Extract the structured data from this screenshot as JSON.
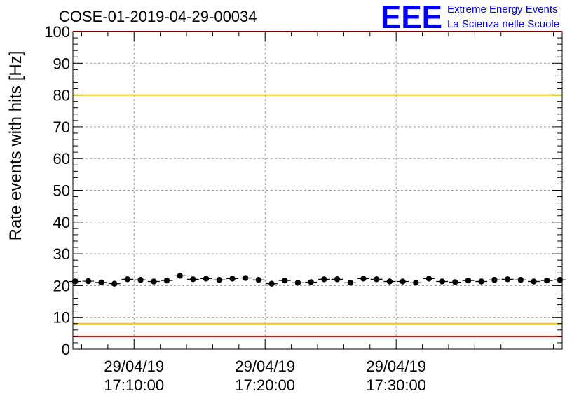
{
  "logo": {
    "mark": "EEE",
    "line1": "Extreme Energy Events",
    "line2": "La Scienza nelle Scuole",
    "color": "#0000ee"
  },
  "chart_data": {
    "type": "scatter",
    "title": "COSE-01-2019-04-29-00034",
    "xlabel": "",
    "ylabel": "Rate events with hits [Hz]",
    "ylim": [
      0,
      100
    ],
    "yticks": [
      0,
      10,
      20,
      30,
      40,
      50,
      60,
      70,
      80,
      90,
      100
    ],
    "xlim": [
      "2019-04-29 17:05:20",
      "2019-04-29 17:42:40"
    ],
    "xticks": [
      {
        "date": "29/04/19",
        "time": "17:10:00"
      },
      {
        "date": "29/04/19",
        "time": "17:20:00"
      },
      {
        "date": "29/04/19",
        "time": "17:30:00"
      }
    ],
    "grid": true,
    "colors": {
      "points": "#000000",
      "limit_red": "#ff0000",
      "limit_yellow": "#f0c800"
    },
    "reference_lines": [
      {
        "y": 100,
        "color": "#ff0000"
      },
      {
        "y": 80,
        "color": "#f0c800"
      },
      {
        "y": 8,
        "color": "#f0c800"
      },
      {
        "y": 4,
        "color": "#ff0000"
      }
    ],
    "series": [
      {
        "x": [
          "17:05:30",
          "17:06:30",
          "17:07:30",
          "17:08:30",
          "17:09:30",
          "17:10:30",
          "17:11:30",
          "17:12:30",
          "17:13:30",
          "17:14:30",
          "17:15:30",
          "17:16:30",
          "17:17:30",
          "17:18:30",
          "17:19:30",
          "17:20:30",
          "17:21:30",
          "17:22:30",
          "17:23:30",
          "17:24:30",
          "17:25:30",
          "17:26:30",
          "17:27:30",
          "17:28:30",
          "17:29:30",
          "17:30:30",
          "17:31:30",
          "17:32:30",
          "17:33:30",
          "17:34:30",
          "17:35:30",
          "17:36:30",
          "17:37:30",
          "17:38:30",
          "17:39:30",
          "17:40:30",
          "17:41:30",
          "17:42:30"
        ],
        "y": [
          21.3,
          21.4,
          21.0,
          20.6,
          22.0,
          21.8,
          21.3,
          21.6,
          23.1,
          22.0,
          22.2,
          21.8,
          22.2,
          22.4,
          21.8,
          20.6,
          21.6,
          20.9,
          21.1,
          22.0,
          22.0,
          20.9,
          22.2,
          22.0,
          21.3,
          21.3,
          20.9,
          22.2,
          21.3,
          21.1,
          21.6,
          21.3,
          21.8,
          22.0,
          21.8,
          21.3,
          21.6,
          21.8
        ]
      }
    ]
  }
}
